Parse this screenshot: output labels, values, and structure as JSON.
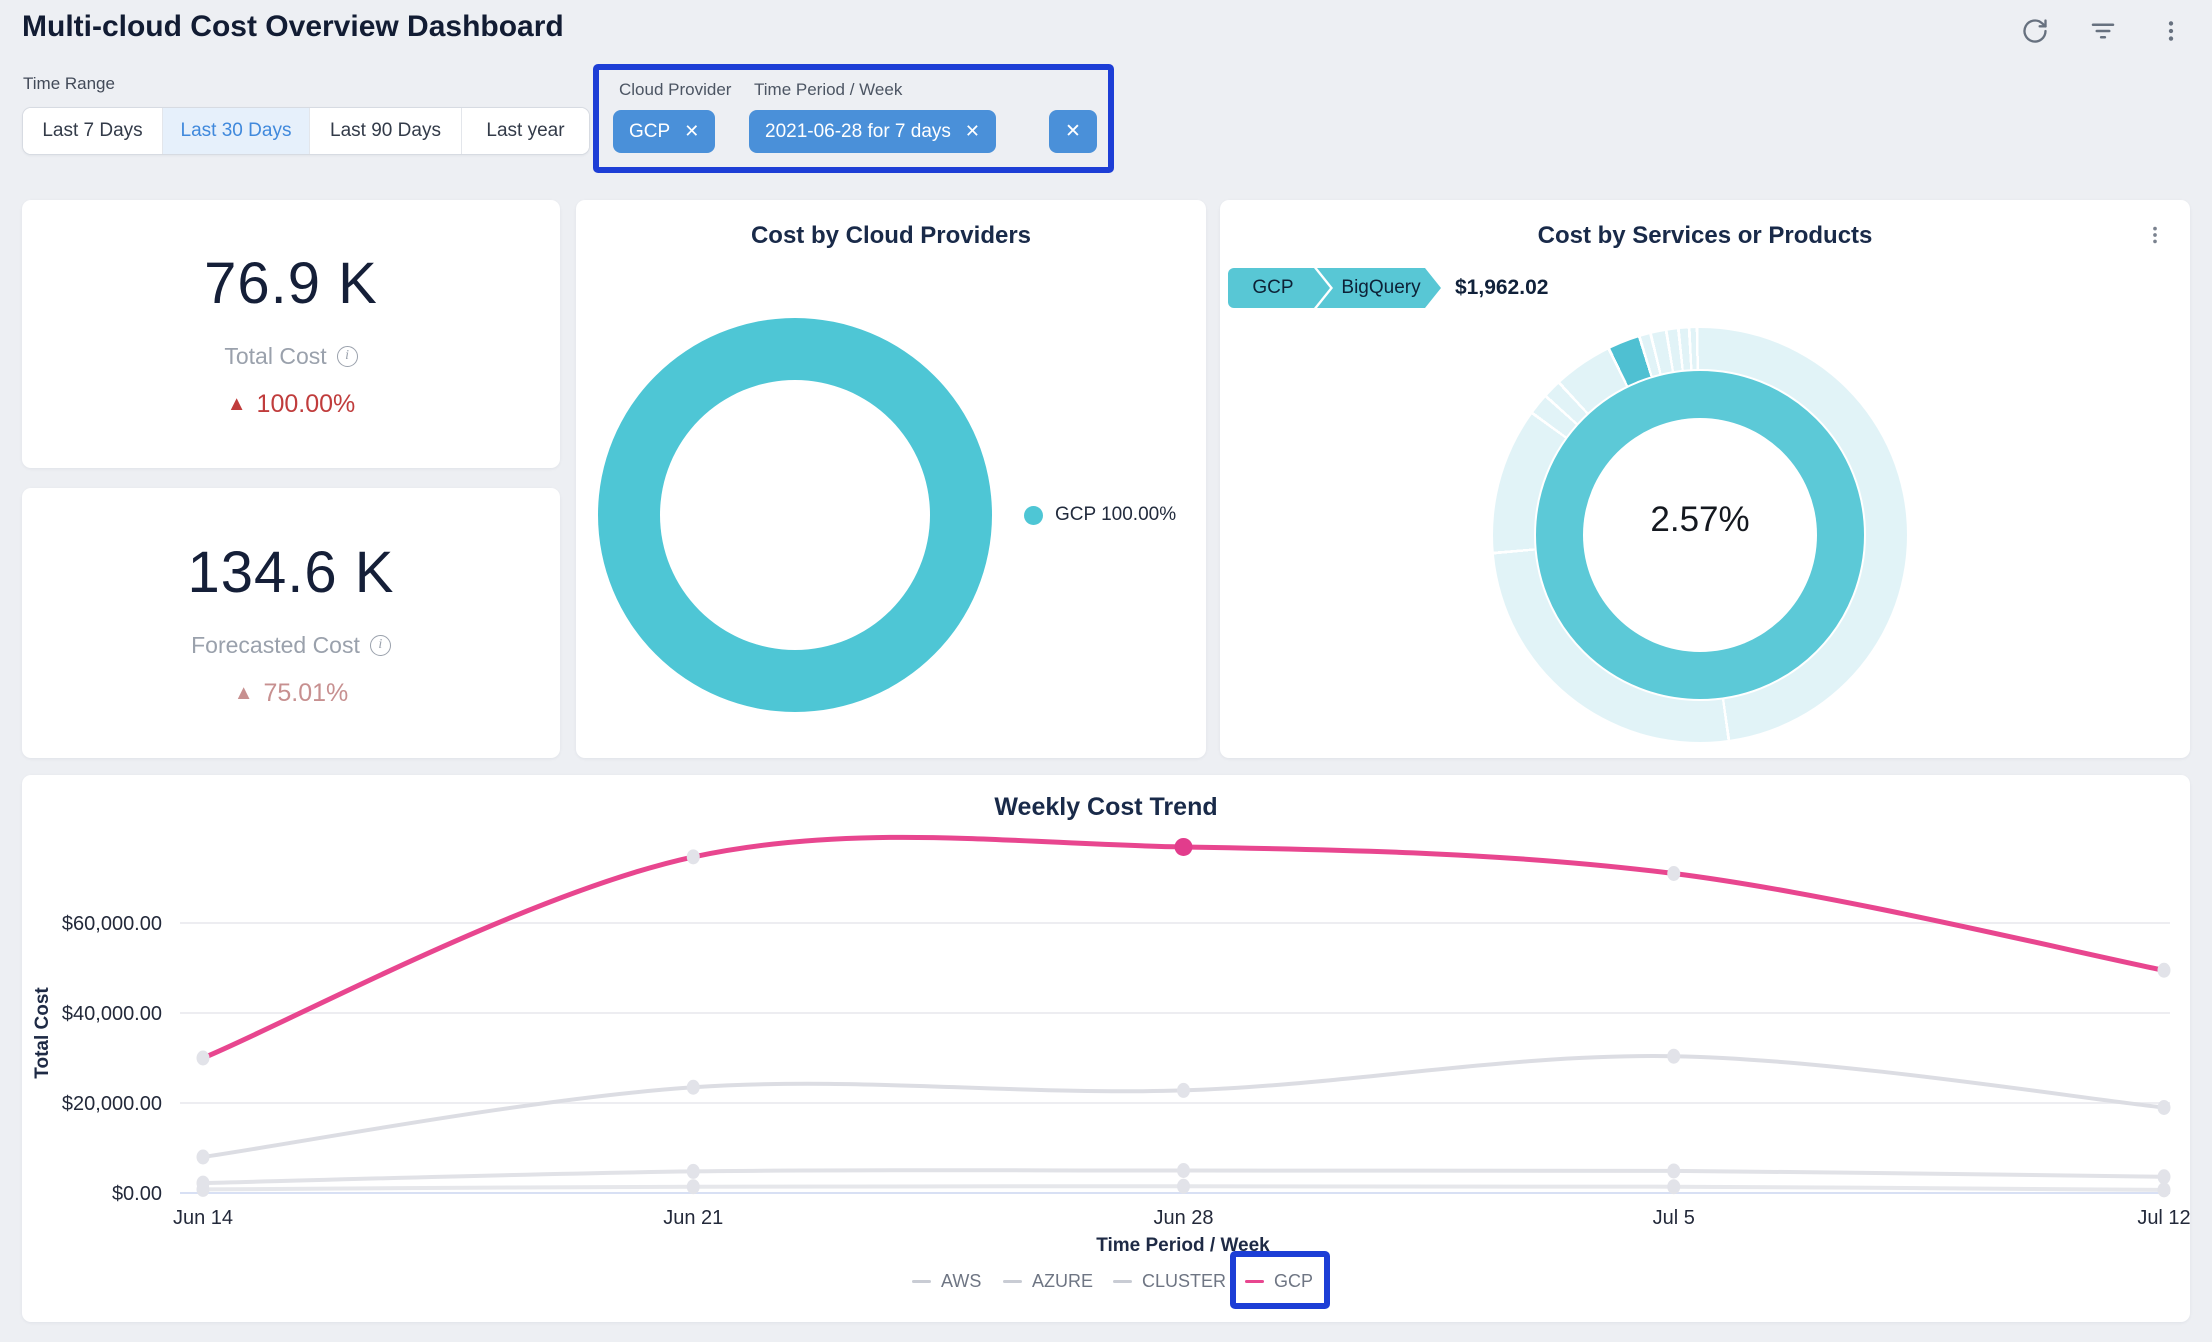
{
  "app": {
    "title": "Multi-cloud Cost Overview Dashboard",
    "header_icons": [
      "refresh-icon",
      "filter-icon",
      "kebab-menu-icon"
    ]
  },
  "filters": {
    "time_range_label": "Time Range",
    "time_range_options": [
      {
        "label": "Last 7 Days",
        "selected": false
      },
      {
        "label": "Last 30 Days",
        "selected": true
      },
      {
        "label": "Last 90 Days",
        "selected": false
      },
      {
        "label": "Last year",
        "selected": false
      }
    ],
    "cloud_provider": {
      "label": "Cloud Provider",
      "chip": "GCP",
      "remove_icon": "✕"
    },
    "time_period": {
      "label": "Time Period / Week",
      "chip": "2021-06-28 for 7 days",
      "remove_icon": "✕"
    },
    "clear_all_icon": "✕"
  },
  "kpis": [
    {
      "value": "76.9 K",
      "label": "Total Cost",
      "delta": "100.00%",
      "trend": "up",
      "delta_color": "#c03c3c"
    },
    {
      "value": "134.6 K",
      "label": "Forecasted Cost",
      "delta": "75.01%",
      "trend": "up",
      "delta_color": "#c79090"
    }
  ],
  "chart_data": [
    {
      "type": "pie",
      "variant": "donut",
      "title": "Cost by Cloud Providers",
      "slices": [
        {
          "label": "GCP",
          "pct": 100.0,
          "color": "#4ec6d5"
        }
      ],
      "legend": [
        {
          "label": "GCP 100.00%",
          "color": "#4ec6d5"
        }
      ],
      "legend_position": "right"
    },
    {
      "type": "pie",
      "variant": "sunburst-donut",
      "title": "Cost by Services or Products",
      "breadcrumb": [
        {
          "label": "GCP"
        },
        {
          "label": "BigQuery"
        }
      ],
      "selected_value": "$1,962.02",
      "center_label": "2.57%",
      "selected_slice_pct": 2.57,
      "ring_colors": {
        "inner": "#5cc9d7",
        "outer": "#e1f3f7",
        "highlight": "#4fc0d2"
      }
    },
    {
      "type": "line",
      "title": "Weekly Cost Trend",
      "xlabel": "Time Period / Week",
      "ylabel": "Total Cost",
      "categories": [
        "Jun 14",
        "Jun 21",
        "Jun 28",
        "Jul 5",
        "Jul 12"
      ],
      "ylim": [
        0,
        83000
      ],
      "grid": true,
      "yticks": [
        {
          "value": 0,
          "label": "$0.00"
        },
        {
          "value": 20000,
          "label": "$20,000.00"
        },
        {
          "value": 40000,
          "label": "$40,000.00"
        },
        {
          "value": 60000,
          "label": "$60,000.00"
        }
      ],
      "series": [
        {
          "name": "AWS",
          "color": "#e6e7eb",
          "legend_color": "#c9ccd4",
          "values": [
            800,
            1400,
            1500,
            1400,
            700
          ]
        },
        {
          "name": "AZURE",
          "color": "#e1e2e7",
          "legend_color": "#c9ccd4",
          "values": [
            2200,
            4800,
            5000,
            4900,
            3600
          ]
        },
        {
          "name": "CLUSTER",
          "color": "#dcdde3",
          "legend_color": "#c9ccd4",
          "values": [
            8000,
            23500,
            22800,
            30400,
            19000
          ]
        },
        {
          "name": "GCP",
          "color": "#e8468f",
          "legend_color": "#e8468f",
          "values": [
            30000,
            74700,
            76900,
            71000,
            49500
          ]
        }
      ],
      "highlight_point": {
        "series": "GCP",
        "category": "Jun 28",
        "color": "#e23c8c"
      },
      "legend_position": "bottom"
    }
  ]
}
